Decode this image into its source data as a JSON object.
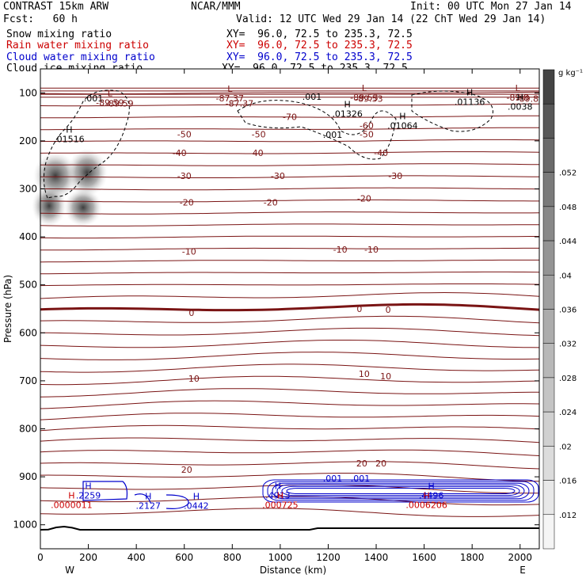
{
  "header": {
    "title": "CONTRAST 15km ARW",
    "center": "NCAR/MMM",
    "init": "Init: 00 UTC Mon 27 Jan 14",
    "fcst": "Fcst:   60 h",
    "valid": "Valid: 12 UTC Wed 29 Jan 14 (22 ChT Wed 29 Jan 14)"
  },
  "fields": [
    {
      "name": "Snow mixing ratio",
      "xy": "XY=  96.0, 72.5 to 235.3, 72.5",
      "color": "#000000"
    },
    {
      "name": "Rain water mixing ratio",
      "xy": "XY=  96.0, 72.5 to 235.3, 72.5",
      "color": "#cc0000"
    },
    {
      "name": "Cloud water mixing ratio",
      "xy": "XY=  96.0, 72.5 to 235.3, 72.5",
      "color": "#0000cc"
    },
    {
      "name": "Cloud ice mixing ratio",
      "xy": "XY=  96.0, 72.5 to 235.3, 72.5",
      "color": "#000000"
    }
  ],
  "chart_data": {
    "type": "cross-section contour",
    "xlabel": "Distance (km)",
    "ylabel": "Pressure (hPa)",
    "xlim": [
      0,
      2080
    ],
    "ylim": [
      1050,
      50
    ],
    "xticks": [
      0,
      200,
      400,
      600,
      800,
      1000,
      1200,
      1400,
      1600,
      1800,
      2000
    ],
    "yticks": [
      100,
      200,
      300,
      400,
      500,
      600,
      700,
      800,
      900,
      1000
    ],
    "x_end_labels": {
      "left": "W",
      "right": "E"
    },
    "colorbar": {
      "units": "g kg⁻¹",
      "ticks": [
        ".012",
        ".016",
        ".02",
        ".024",
        ".028",
        ".032",
        ".036",
        ".04",
        ".044",
        ".048",
        ".052"
      ],
      "colors": [
        "#f5f5f5",
        "#e8e8e8",
        "#dcdcdc",
        "#d0d0d0",
        "#c4c4c4",
        "#b8b8b8",
        "#acacac",
        "#a0a0a0",
        "#949494",
        "#888888",
        "#7a7a7a",
        "#6a6a6a",
        "#585858",
        "#444444"
      ]
    },
    "temperature_contours": [
      {
        "value": "-89.59",
        "x": 330,
        "p": 122
      },
      {
        "value": "-87.37",
        "x": 830,
        "p": 122
      },
      {
        "value": "-89.53",
        "x": 1370,
        "p": 112
      },
      {
        "value": "-89.8",
        "x": 2030,
        "p": 112
      },
      {
        "value": "-70",
        "x": 1040,
        "p": 150
      },
      {
        "value": "-60",
        "x": 1360,
        "p": 168
      },
      {
        "value": "-50",
        "x": 600,
        "p": 186
      },
      {
        "value": "-50",
        "x": 910,
        "p": 186
      },
      {
        "value": "-50",
        "x": 1360,
        "p": 186
      },
      {
        "value": "-40",
        "x": 580,
        "p": 225
      },
      {
        "value": "-40",
        "x": 900,
        "p": 225
      },
      {
        "value": "-40",
        "x": 1420,
        "p": 225
      },
      {
        "value": "-30",
        "x": 600,
        "p": 273
      },
      {
        "value": "-30",
        "x": 990,
        "p": 273
      },
      {
        "value": "-30",
        "x": 1480,
        "p": 273
      },
      {
        "value": "-20",
        "x": 610,
        "p": 328
      },
      {
        "value": "-20",
        "x": 960,
        "p": 328
      },
      {
        "value": "-20",
        "x": 1350,
        "p": 320
      },
      {
        "value": "-10",
        "x": 620,
        "p": 430
      },
      {
        "value": "-10",
        "x": 1250,
        "p": 426
      },
      {
        "value": "-10",
        "x": 1380,
        "p": 426
      },
      {
        "value": "0",
        "x": 630,
        "p": 558
      },
      {
        "value": "0",
        "x": 1330,
        "p": 550
      },
      {
        "value": "0",
        "x": 1450,
        "p": 552
      },
      {
        "value": "10",
        "x": 640,
        "p": 695
      },
      {
        "value": "10",
        "x": 1350,
        "p": 685
      },
      {
        "value": "10",
        "x": 1440,
        "p": 690
      },
      {
        "value": "20",
        "x": 610,
        "p": 885
      },
      {
        "value": "20",
        "x": 1340,
        "p": 872
      },
      {
        "value": "20",
        "x": 1420,
        "p": 872
      }
    ],
    "cloud_ice_labels": [
      ".001",
      ".001",
      ".001",
      ".001",
      ".001"
    ],
    "markers": [
      {
        "type": "L",
        "label": "-89.59",
        "x": 290,
        "p": 107
      },
      {
        "type": "L",
        "label": "-87.37",
        "x": 790,
        "p": 98
      },
      {
        "type": "L",
        "label": "-89.53",
        "x": 1350,
        "p": 96
      },
      {
        "type": "L",
        "label": "-89.8",
        "x": 1990,
        "p": 96
      },
      {
        "type": "H",
        "label": ".01516",
        "x": 120,
        "p": 183
      },
      {
        "type": "H",
        "label": ".01326",
        "x": 1280,
        "p": 130
      },
      {
        "type": "H",
        "label": ".01136",
        "x": 1790,
        "p": 105
      },
      {
        "type": "H",
        "label": ".01064",
        "x": 1510,
        "p": 155
      },
      {
        "type": "H",
        "label": ".0038",
        "x": 2000,
        "p": 115
      },
      {
        "type": "H",
        "label": ".2259",
        "x": 200,
        "p": 925
      },
      {
        "type": "H",
        "label": ".0000011",
        "x": 130,
        "p": 945
      },
      {
        "type": "H",
        "label": ".2127",
        "x": 450,
        "p": 947
      },
      {
        "type": "H",
        "label": ".0442",
        "x": 650,
        "p": 947
      },
      {
        "type": "H",
        "label": ".4913",
        "x": 990,
        "p": 925
      },
      {
        "type": "H",
        "label": ".000725",
        "x": 1000,
        "p": 945
      },
      {
        "type": "H",
        "label": ".4496",
        "x": 1630,
        "p": 925
      },
      {
        "type": "H",
        "label": ".0006206",
        "x": 1610,
        "p": 945
      }
    ]
  }
}
